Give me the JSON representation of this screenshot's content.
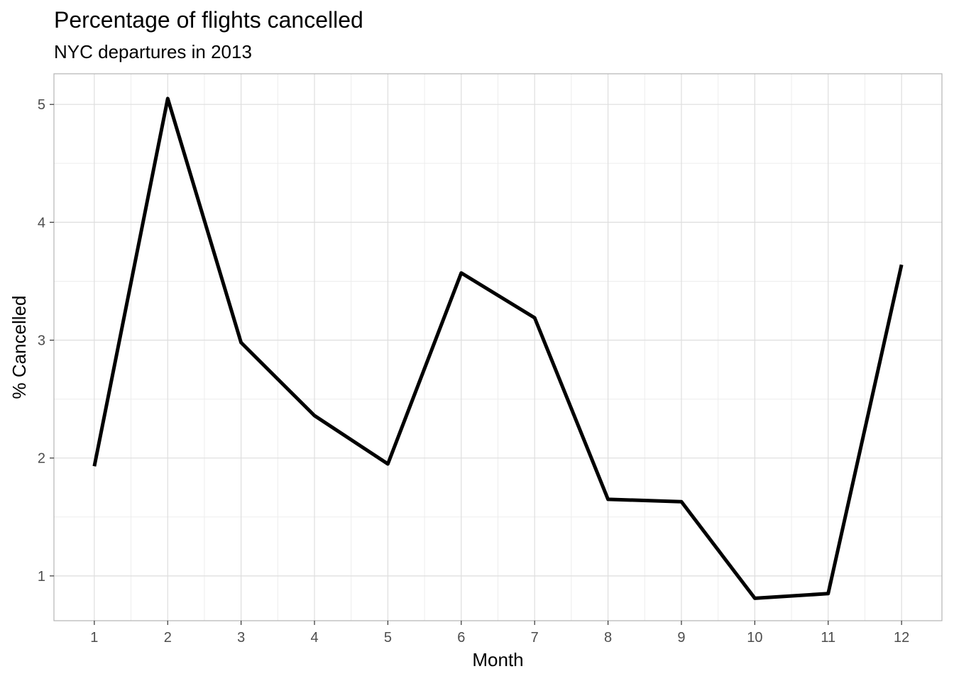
{
  "chart_data": {
    "type": "line",
    "title": "Percentage of flights cancelled",
    "subtitle": "NYC departures in 2013",
    "xlabel": "Month",
    "ylabel": "% Cancelled",
    "x": [
      1,
      2,
      3,
      4,
      5,
      6,
      7,
      8,
      9,
      10,
      11,
      12
    ],
    "series": [
      {
        "values": [
          1.93,
          5.05,
          2.98,
          2.36,
          1.95,
          3.57,
          3.19,
          1.65,
          1.63,
          0.81,
          0.85,
          3.64
        ]
      }
    ],
    "xticks": [
      1,
      2,
      3,
      4,
      5,
      6,
      7,
      8,
      9,
      10,
      11,
      12
    ],
    "yticks": [
      1,
      2,
      3,
      4,
      5
    ],
    "xlim": [
      0.45,
      12.55
    ],
    "ylim": [
      0.62,
      5.26
    ],
    "grid": true,
    "line_color": "#000000",
    "grid_color": "#dedede",
    "panel_border_color": "#b3b3b3"
  }
}
